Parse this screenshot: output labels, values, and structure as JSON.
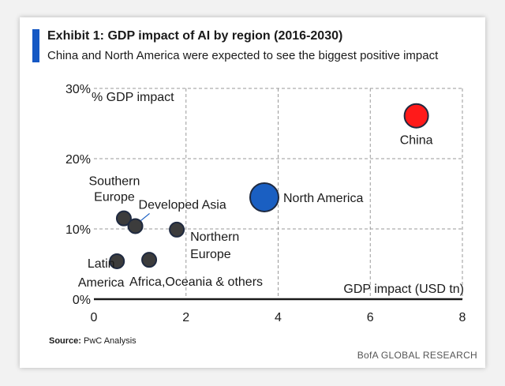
{
  "colors": {
    "accent": "#1558c4",
    "point_default": "#3c3c3c",
    "point_north_america": "#1a5fc2",
    "point_china": "#ff1a1a",
    "grid": "#9a9a9a",
    "axis": "#1a1a1a"
  },
  "header": {
    "title": "Exhibit 1: GDP impact of AI by region (2016-2030)",
    "subtitle": "China and North America were expected to see the biggest positive impact"
  },
  "footer": {
    "source_label": "Source:",
    "source_text": "PwC Analysis",
    "brand": "BofA GLOBAL RESEARCH"
  },
  "chart_data": {
    "type": "scatter",
    "title": "GDP impact of AI by region (2016-2030)",
    "xlabel": "GDP impact (USD tn)",
    "ylabel": "% GDP impact",
    "xlim": [
      0,
      8
    ],
    "ylim": [
      0,
      30
    ],
    "xticks": [
      0,
      2,
      4,
      6,
      8
    ],
    "yticks": [
      0,
      10,
      20,
      30
    ],
    "xtick_labels": [
      "0",
      "2",
      "4",
      "6",
      "8"
    ],
    "ytick_labels": [
      "0%",
      "10%",
      "20%",
      "30%"
    ],
    "grid": true,
    "points": [
      {
        "name": "China",
        "label_lines": [
          "China"
        ],
        "x": 7.0,
        "y": 26.1,
        "size": "large",
        "color": "#ff1a1a"
      },
      {
        "name": "North America",
        "label_lines": [
          "North America"
        ],
        "x": 3.7,
        "y": 14.5,
        "size": "large",
        "color": "#1a5fc2"
      },
      {
        "name": "Southern Europe",
        "label_lines": [
          "Southern",
          "Europe"
        ],
        "x": 0.65,
        "y": 11.5,
        "size": "small",
        "color": "#3c3c3c"
      },
      {
        "name": "Developed Asia",
        "label_lines": [
          "Developed Asia"
        ],
        "x": 0.9,
        "y": 10.4,
        "size": "small",
        "color": "#3c3c3c"
      },
      {
        "name": "Northern Europe",
        "label_lines": [
          "Northern",
          "Europe"
        ],
        "x": 1.8,
        "y": 9.9,
        "size": "small",
        "color": "#3c3c3c"
      },
      {
        "name": "Latin America",
        "label_lines": [
          "Latin",
          "America"
        ],
        "x": 0.5,
        "y": 5.4,
        "size": "small",
        "color": "#3c3c3c"
      },
      {
        "name": "Africa, Oceania & others",
        "label_lines": [
          "Africa,Oceania & others"
        ],
        "x": 1.2,
        "y": 5.6,
        "size": "small",
        "color": "#3c3c3c"
      }
    ]
  }
}
